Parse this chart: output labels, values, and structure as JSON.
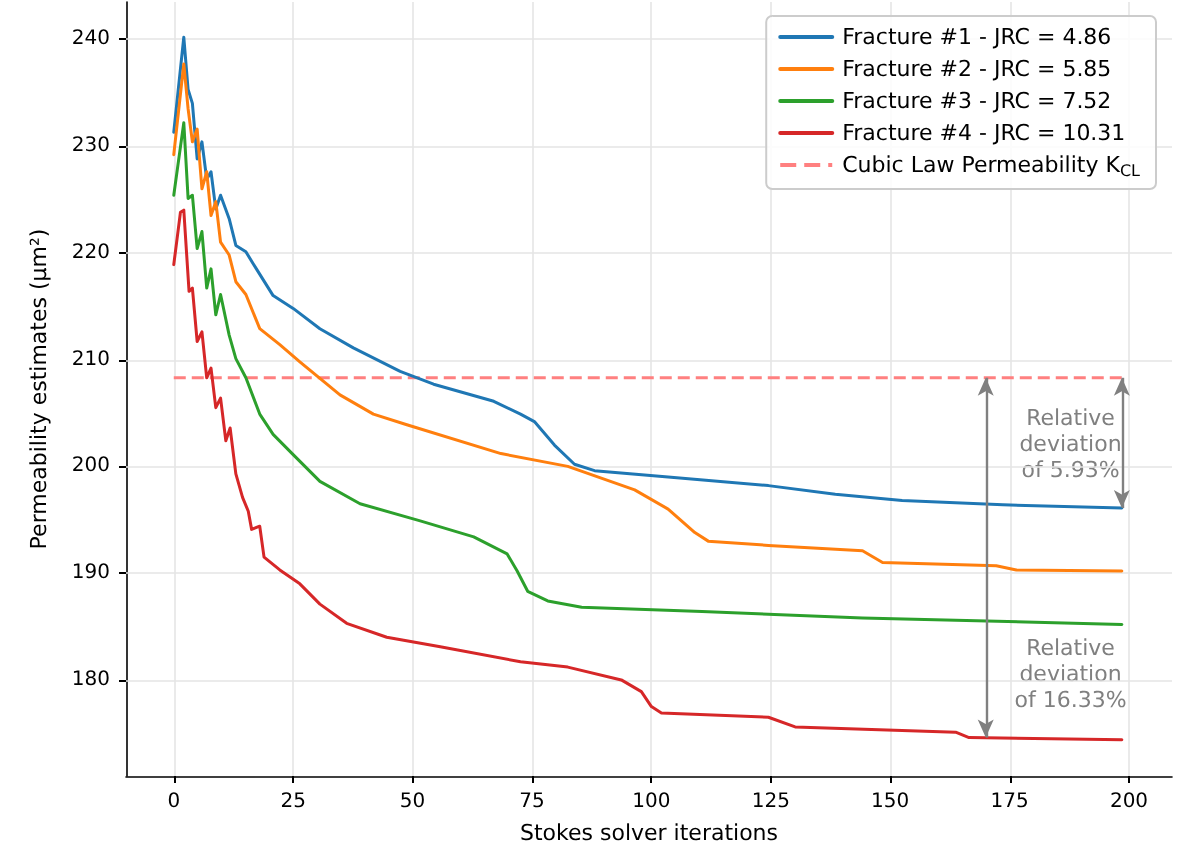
{
  "chart_data": {
    "type": "line",
    "xlabel": "Stokes solver iterations",
    "ylabel": "Permeability estimates (μm²)",
    "xlim": [
      -10,
      209
    ],
    "xticks": [
      0,
      25,
      50,
      75,
      100,
      125,
      150,
      175,
      200
    ],
    "ylim": [
      171,
      243.5
    ],
    "yticks": [
      180,
      190,
      200,
      210,
      220,
      230,
      240
    ],
    "grid": true,
    "legend": "top right",
    "marker": "none",
    "line_style": "solid",
    "series": [
      {
        "name": "Fracture #1 - JRC = 4.86",
        "color": "#1f77b4",
        "x": [
          0,
          2.1,
          3,
          3.9,
          4.9,
          5.9,
          6.9,
          7.8,
          8.8,
          9.8,
          11.6,
          13,
          15.1,
          17.3,
          20.8,
          25,
          30.6,
          37.6,
          47.4,
          54.4,
          67,
          72.6,
          75.5,
          79.7,
          83.9,
          88.1,
          103.5,
          124.5,
          138.5,
          152.5,
          173.6,
          198.5
        ],
        "values": [
          231.3,
          240.2,
          235.3,
          234,
          228.8,
          230.4,
          226.9,
          227.6,
          224.1,
          225.4,
          223.2,
          220.7,
          220.1,
          218.5,
          216,
          214.8,
          212.9,
          211.1,
          208.9,
          207.7,
          206.1,
          204.9,
          204.2,
          202,
          200.2,
          199.6,
          199,
          198.2,
          197.4,
          196.8,
          196.4,
          196.1
        ]
      },
      {
        "name": "Fracture #2 - JRC = 5.85",
        "color": "#ff7f0e",
        "x": [
          0,
          2.1,
          3,
          3.9,
          4.9,
          5.9,
          6.9,
          7.8,
          8.8,
          9.8,
          11.6,
          13,
          15.1,
          18,
          22.2,
          26.4,
          34.8,
          41.8,
          48.8,
          68.5,
          82.5,
          96.5,
          103.5,
          109.1,
          111.9,
          124.5,
          144.2,
          148.4,
          172.2,
          176.4,
          198.5
        ],
        "values": [
          229.2,
          237.7,
          233.5,
          230.4,
          231.6,
          226,
          227.6,
          223.5,
          224.8,
          221,
          219.8,
          217.3,
          216.1,
          212.9,
          211.4,
          209.8,
          206.7,
          204.9,
          203.9,
          201.2,
          200,
          197.8,
          196,
          193.8,
          193,
          192.6,
          192.1,
          191,
          190.7,
          190.3,
          190.2
        ]
      },
      {
        "name": "Fracture #3 - JRC = 7.52",
        "color": "#2ca02c",
        "x": [
          0,
          2.1,
          3,
          3.9,
          4.9,
          5.9,
          6.9,
          7.8,
          8.8,
          9.8,
          11.6,
          13,
          15.1,
          18,
          20.8,
          25,
          30.6,
          39,
          51.6,
          62.8,
          69.8,
          71.9,
          74.1,
          78.3,
          85.4,
          110.6,
          144.2,
          198.5
        ],
        "values": [
          225.4,
          232.2,
          225.1,
          225.4,
          220.4,
          222,
          216.7,
          218.5,
          214.2,
          216.1,
          212.3,
          210.1,
          208.3,
          204.9,
          203,
          201.1,
          198.6,
          196.5,
          194.9,
          193.4,
          191.8,
          190.2,
          188.3,
          187.4,
          186.8,
          186.4,
          185.8,
          185.2
        ]
      },
      {
        "name": "Fracture #4 - JRC = 10.31",
        "color": "#d62728",
        "x": [
          0,
          1.4,
          2.1,
          3.2,
          3.9,
          4.9,
          5.9,
          6.9,
          7.8,
          8.8,
          9.8,
          10.9,
          11.8,
          13,
          14.4,
          15.6,
          16.3,
          18,
          18.9,
          22.2,
          26.4,
          30.6,
          36.2,
          44.6,
          55.8,
          72.6,
          82.5,
          93.7,
          97.9,
          100,
          102.1,
          124.5,
          130.1,
          163.7,
          166.5,
          198.5
        ],
        "values": [
          218.9,
          223.8,
          224,
          216.4,
          216.7,
          211.7,
          212.6,
          208.3,
          209.2,
          205.5,
          206.4,
          202.4,
          203.6,
          199.3,
          197.1,
          195.8,
          194.1,
          194.4,
          191.5,
          190.3,
          189,
          187.1,
          185.3,
          184,
          183.1,
          181.7,
          181.2,
          180,
          178.9,
          177.5,
          176.9,
          176.5,
          175.6,
          175.1,
          174.6,
          174.4
        ]
      }
    ],
    "ref_lines": [
      {
        "axis": "y",
        "value": 208.3,
        "label": "Cubic Law Permeability K$_{CL}$",
        "color": "#ff8080",
        "line_style": "dashed"
      }
    ],
    "annotations": [
      {
        "text": "Relative\ndeviation\nof 5.93%",
        "x": 198.5,
        "y": 196.1
      },
      {
        "text": "Relative\ndeviation\nof 16.33%",
        "x": 170,
        "y": 174.6
      }
    ]
  }
}
